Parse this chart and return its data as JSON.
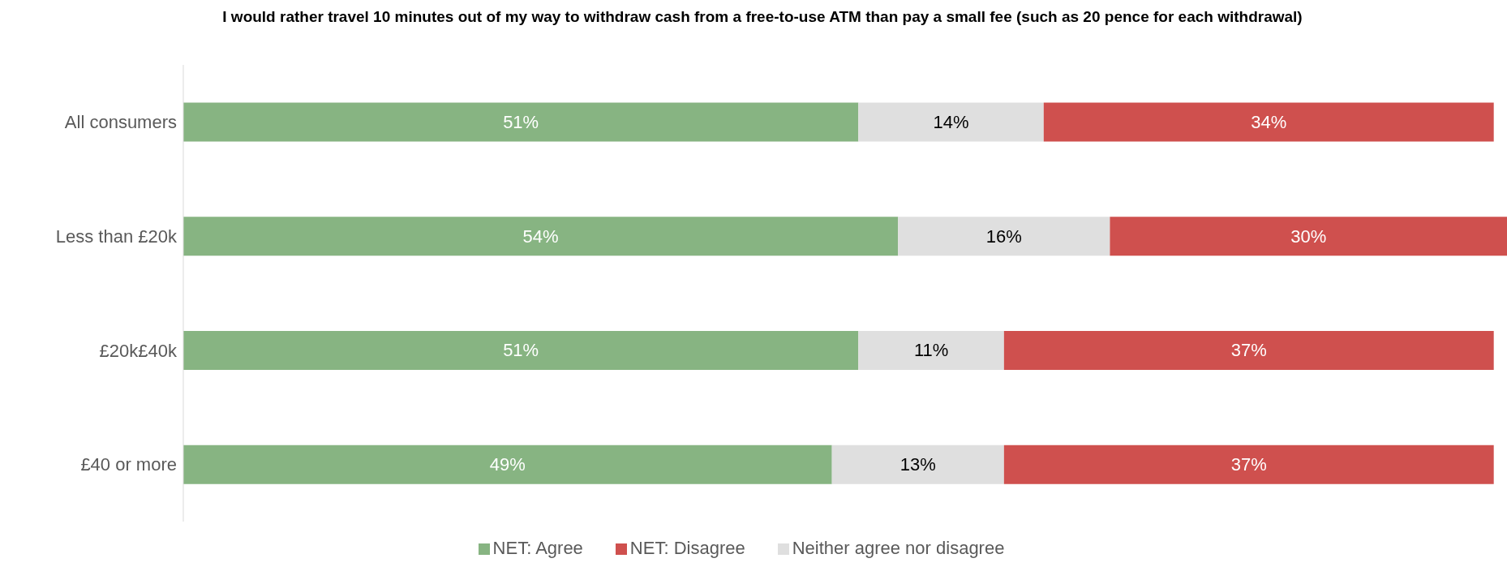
{
  "chart_data": {
    "type": "bar",
    "orientation": "horizontal",
    "stacked": true,
    "title": "I would rather travel 10 minutes out of my way to withdraw cash from a free-to-use ATM than pay a small fee (such as 20 pence for each withdrawal)",
    "categories": [
      "All consumers",
      "Less than £20k",
      "£20k£40k",
      "£40 or more"
    ],
    "xlim": [
      0,
      100
    ],
    "tick_labels": "y",
    "legend": "bottom",
    "grid": false,
    "series": [
      {
        "name": "NET: Agree",
        "color": "#87b482",
        "values": [
          51,
          54,
          51,
          49
        ],
        "value_labels": [
          "51%",
          "54%",
          "51%",
          "49%"
        ]
      },
      {
        "name": "Neither agree nor disagree",
        "color": "#dfdfdf",
        "values": [
          14,
          16,
          11,
          13
        ],
        "value_labels": [
          "14%",
          "16%",
          "11%",
          "13%"
        ]
      },
      {
        "name": "NET: Disagree",
        "color": "#cf504e",
        "values": [
          34,
          30,
          37,
          37
        ],
        "value_labels": [
          "34%",
          "30%",
          "37%",
          "37%"
        ]
      }
    ]
  }
}
